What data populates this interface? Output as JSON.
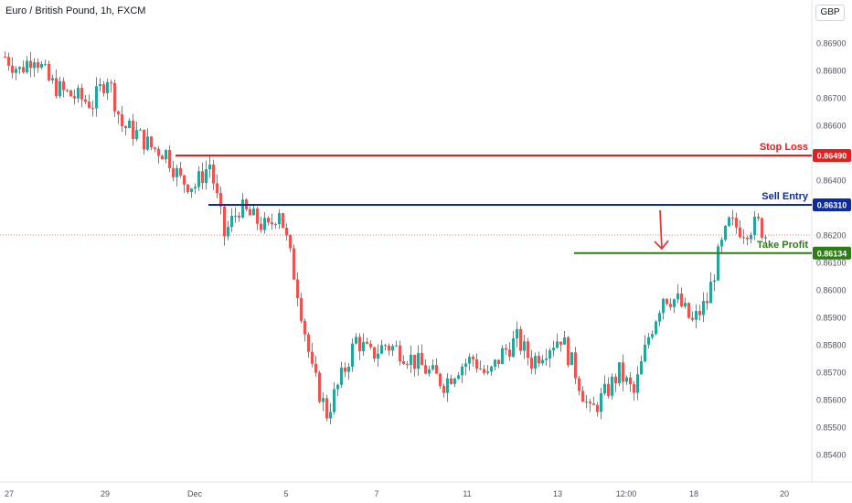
{
  "header": {
    "title": "Euro / British Pound, 1h, FXCM",
    "currency": "GBP"
  },
  "chart_data": {
    "type": "candlestick",
    "ylim": [
      0.8535,
      0.8695
    ],
    "y_ticks": [
      "0.86900",
      "0.86800",
      "0.86700",
      "0.86600",
      "0.86500",
      "0.86400",
      "0.86300",
      "0.86200",
      "0.86100",
      "0.86000",
      "0.85900",
      "0.85800",
      "0.85700",
      "0.85600",
      "0.85500",
      "0.85400"
    ],
    "x_ticks": [
      "27",
      "29",
      "Dec",
      "5",
      "7",
      "11",
      "13",
      "12:00",
      "18",
      "20"
    ],
    "current_price": 0.862,
    "colors": {
      "up": "#26a69a",
      "down": "#ef5350"
    },
    "levels": [
      {
        "name": "Stop Loss",
        "value": 0.8649,
        "value_label": "0.86490",
        "color": "#e01f1f"
      },
      {
        "name": "Sell Entry",
        "value": 0.8631,
        "value_label": "0.86310",
        "color": "#0d2b9e"
      },
      {
        "name": "Take Profit",
        "value": 0.86134,
        "value_label": "0.86134",
        "color": "#2e7d14"
      }
    ],
    "annotation_arrow": {
      "direction": "down",
      "color": "#e53935",
      "from_price": 0.8629,
      "to_price": 0.8615
    },
    "price_path": [
      [
        0,
        0.8685
      ],
      [
        4,
        0.868
      ],
      [
        8,
        0.8686
      ],
      [
        12,
        0.8676
      ],
      [
        16,
        0.8672
      ],
      [
        20,
        0.867
      ],
      [
        24,
        0.8668
      ],
      [
        28,
        0.8678
      ],
      [
        32,
        0.866
      ],
      [
        36,
        0.8657
      ],
      [
        40,
        0.8652
      ],
      [
        44,
        0.865
      ],
      [
        48,
        0.864
      ],
      [
        52,
        0.8638
      ],
      [
        56,
        0.8646
      ],
      [
        60,
        0.862
      ],
      [
        64,
        0.863
      ],
      [
        68,
        0.8626
      ],
      [
        72,
        0.8622
      ],
      [
        75,
        0.863
      ],
      [
        78,
        0.8612
      ],
      [
        80,
        0.86
      ],
      [
        84,
        0.857
      ],
      [
        88,
        0.8555
      ],
      [
        92,
        0.8568
      ],
      [
        96,
        0.8582
      ],
      [
        100,
        0.8576
      ],
      [
        104,
        0.858
      ],
      [
        108,
        0.8578
      ],
      [
        112,
        0.8574
      ],
      [
        116,
        0.857
      ],
      [
        120,
        0.8566
      ],
      [
        124,
        0.8572
      ],
      [
        128,
        0.8575
      ],
      [
        132,
        0.8568
      ],
      [
        136,
        0.8577
      ],
      [
        140,
        0.8582
      ],
      [
        144,
        0.8574
      ],
      [
        148,
        0.8579
      ],
      [
        152,
        0.8583
      ],
      [
        156,
        0.857
      ],
      [
        160,
        0.8555
      ],
      [
        164,
        0.8562
      ],
      [
        168,
        0.857
      ],
      [
        172,
        0.8562
      ],
      [
        176,
        0.8583
      ],
      [
        180,
        0.8598
      ],
      [
        184,
        0.8596
      ],
      [
        188,
        0.8588
      ],
      [
        192,
        0.8596
      ],
      [
        195,
        0.8612
      ],
      [
        198,
        0.8624
      ],
      [
        202,
        0.8622
      ],
      [
        206,
        0.8624
      ],
      [
        208,
        0.862
      ]
    ]
  }
}
